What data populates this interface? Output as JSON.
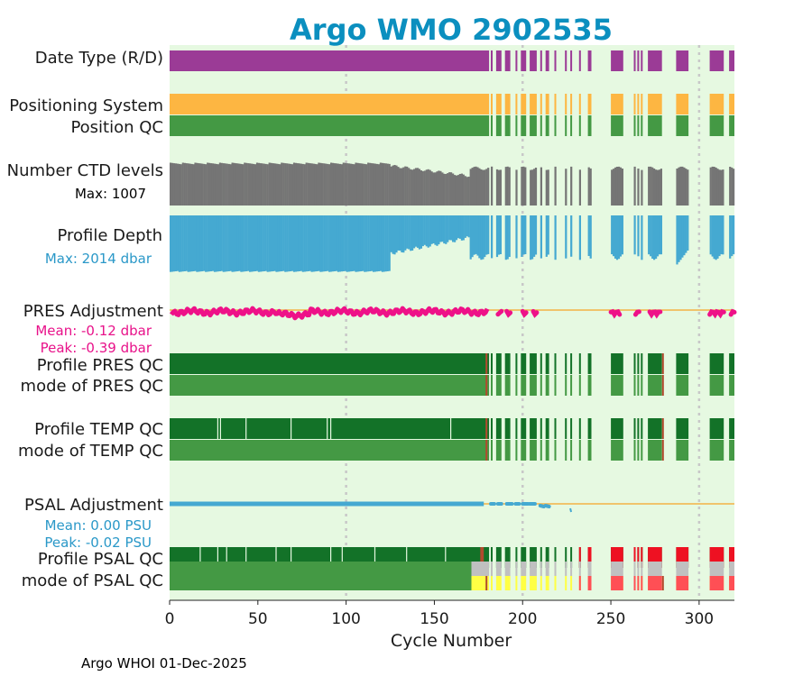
{
  "chart_data": {
    "type": "timeline",
    "title": "Argo WMO 2902535",
    "xlabel": "Cycle Number",
    "xlim": [
      0,
      320
    ],
    "xticks": [
      0,
      50,
      100,
      150,
      200,
      250,
      300
    ],
    "grid_x": [
      100,
      200,
      300
    ],
    "footer": "Argo WHOI 01-Dec-2025",
    "panel_background": "#e6f9e1",
    "row_labels": {
      "date_type": "Date Type (R/D)",
      "positioning_system": "Positioning System",
      "position_qc": "Position QC",
      "ctd_levels": "Number CTD levels",
      "ctd_max": "Max: 1007",
      "profile_depth": "Profile Depth",
      "depth_max": "Max: 2014 dbar",
      "pres_adjustment": "PRES Adjustment",
      "pres_mean": "Mean: -0.12 dbar",
      "pres_peak": "Peak: -0.39 dbar",
      "profile_pres_qc": "Profile PRES QC",
      "mode_pres_qc": "mode of PRES QC",
      "profile_temp_qc": "Profile TEMP QC",
      "mode_temp_qc": "mode of TEMP QC",
      "psal_adjustment": "PSAL Adjustment",
      "psal_mean": "Mean: 0.00 PSU",
      "psal_peak": "Peak: -0.02 PSU",
      "profile_psal_qc": "Profile PSAL QC",
      "mode_psal_qc": "mode of PSAL QC"
    },
    "colors": {
      "title": "#0b8fbf",
      "date_type": "#9b3b96",
      "positioning": "#fdb642",
      "qc_good_dark": "#137228",
      "qc_good": "#449944",
      "qc_bad": "#ee1122",
      "qc_bad_light": "#ff4f55",
      "qc_gray": "#c0c0c0",
      "qc_yellow": "#ffff44",
      "qc_brown": "#b24a2e",
      "ctd": "#757575",
      "depth": "#45a9d1",
      "pres_line": "#ee1188",
      "psal_line": "#45a9d1",
      "ref_line": "#f3b246",
      "ctd_label": "#000000",
      "depth_label": "#2a98c8",
      "pres_label": "#e8128a",
      "psal_label": "#2a98c8",
      "grid": "#c8c8c8"
    },
    "cycle_segments": [
      [
        0,
        181
      ],
      [
        182,
        183
      ],
      [
        185,
        188
      ],
      [
        190,
        193
      ],
      [
        196,
        197
      ],
      [
        199,
        202
      ],
      [
        204,
        208
      ],
      [
        210,
        211
      ],
      [
        213,
        215
      ],
      [
        218,
        219
      ],
      [
        224,
        225
      ],
      [
        227,
        228
      ],
      [
        232,
        233
      ],
      [
        237,
        239
      ],
      [
        250,
        257
      ],
      [
        263,
        264
      ],
      [
        265,
        266
      ],
      [
        267,
        268
      ],
      [
        271,
        279
      ],
      [
        287,
        294
      ],
      [
        306,
        314
      ],
      [
        317,
        320
      ]
    ],
    "temp_qc_gaps": [
      27,
      28.5,
      43,
      68.5,
      89,
      91,
      159
    ],
    "pres_qc_flagged": [
      179,
      279
    ],
    "temp_qc_flagged": [
      179,
      279
    ],
    "psal_profile_gaps": [
      17,
      27,
      32,
      43,
      60,
      68.5,
      91,
      97.5,
      116,
      134,
      156
    ],
    "psal_profile_flagged": [
      [
        176,
        178,
        "brown"
      ],
      [
        232,
        233,
        "bad"
      ],
      [
        237,
        239,
        "bad"
      ],
      [
        250,
        257,
        "bad"
      ],
      [
        263,
        264,
        "bad"
      ],
      [
        265,
        266,
        "bad"
      ],
      [
        267,
        268,
        "bad"
      ],
      [
        271,
        279,
        "bad"
      ],
      [
        287,
        294,
        "bad"
      ],
      [
        306,
        314,
        "bad"
      ],
      [
        317,
        320,
        "bad"
      ]
    ],
    "psal_mode_flagged": [
      [
        179,
        180,
        "brown"
      ],
      [
        232,
        233,
        "bad_light"
      ],
      [
        237,
        239,
        "bad_light"
      ],
      [
        250,
        257,
        "bad_light"
      ],
      [
        263,
        264,
        "bad_light"
      ],
      [
        265,
        266,
        "bad_light"
      ],
      [
        267,
        268,
        "bad_light"
      ],
      [
        271,
        279,
        "bad_light"
      ],
      [
        279,
        280,
        "brown"
      ],
      [
        287,
        294,
        "bad_light"
      ],
      [
        306,
        314,
        "bad_light"
      ],
      [
        317,
        320,
        "bad_light"
      ]
    ],
    "psal_mode_gray_from": 171,
    "psal_mode_yellow_from": 171,
    "ctd_levels_norm": {
      "before_125": [
        0.99,
        0.95
      ],
      "125_to_170": [
        0.92,
        0.68
      ],
      "after_170": [
        0.86
      ],
      "dip_300": [
        0.18,
        0.5
      ]
    },
    "depth_norm": {
      "before_125": [
        0.98,
        0.97
      ],
      "125_to_170": [
        0.66,
        0.38
      ],
      "after_170": [
        0.72
      ],
      "dip_295": [
        0.85,
        0.55
      ]
    },
    "pres_adjustment": {
      "mean": -0.12,
      "peak": -0.39
    },
    "psal_adjustment": {
      "mean": 0.0,
      "peak": -0.02
    }
  }
}
